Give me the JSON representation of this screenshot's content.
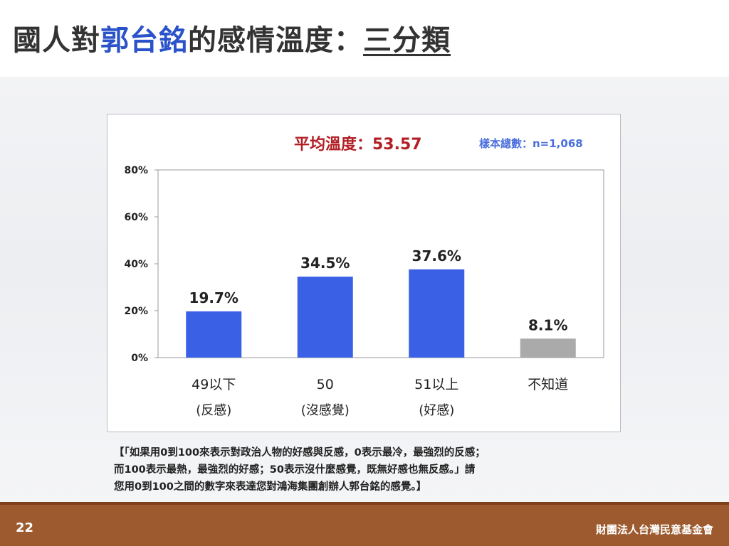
{
  "slide": {
    "title_parts": [
      "國人對",
      "郭台銘",
      "的感情溫度：",
      "三分類"
    ],
    "note_lines": [
      "【「如果用0到100來表示對政治人物的好感與反感，0表示最冷，最強烈的反感；",
      "而100表示最熱，最強烈的好感；50表示沒什麼感覺，既無好感也無反感。」請",
      "您用0到100之間的數字來表達您對鴻海集團創辦人郭台銘的感覺。】"
    ],
    "page_number": "22",
    "organization": "財團法人台灣民意基金會",
    "colors": {
      "accent": "#2a52c9",
      "bar_blue": "#3a60e6",
      "bar_gray": "#aaaaaa",
      "avg_red": "#b21f24",
      "footer": "#9c5a2e"
    }
  },
  "chart_data": {
    "type": "bar",
    "average_label": "平均溫度：53.57",
    "sample_label": "樣本總數：n=1,068",
    "categories": [
      "49以下",
      "50",
      "51以上",
      "不知道"
    ],
    "category_sublabels": [
      "(反感)",
      "(沒感覺)",
      "(好感)",
      ""
    ],
    "values": [
      19.7,
      34.5,
      37.6,
      8.1
    ],
    "value_labels": [
      "19.7%",
      "34.5%",
      "37.6%",
      "8.1%"
    ],
    "bar_colors": [
      "#3a60e6",
      "#3a60e6",
      "#3a60e6",
      "#aaaaaa"
    ],
    "ylim": [
      0,
      80
    ],
    "yticks": [
      0,
      20,
      40,
      60,
      80
    ],
    "ytick_labels": [
      "0%",
      "20%",
      "40%",
      "60%",
      "80%"
    ],
    "grid": false,
    "legend": "none"
  }
}
